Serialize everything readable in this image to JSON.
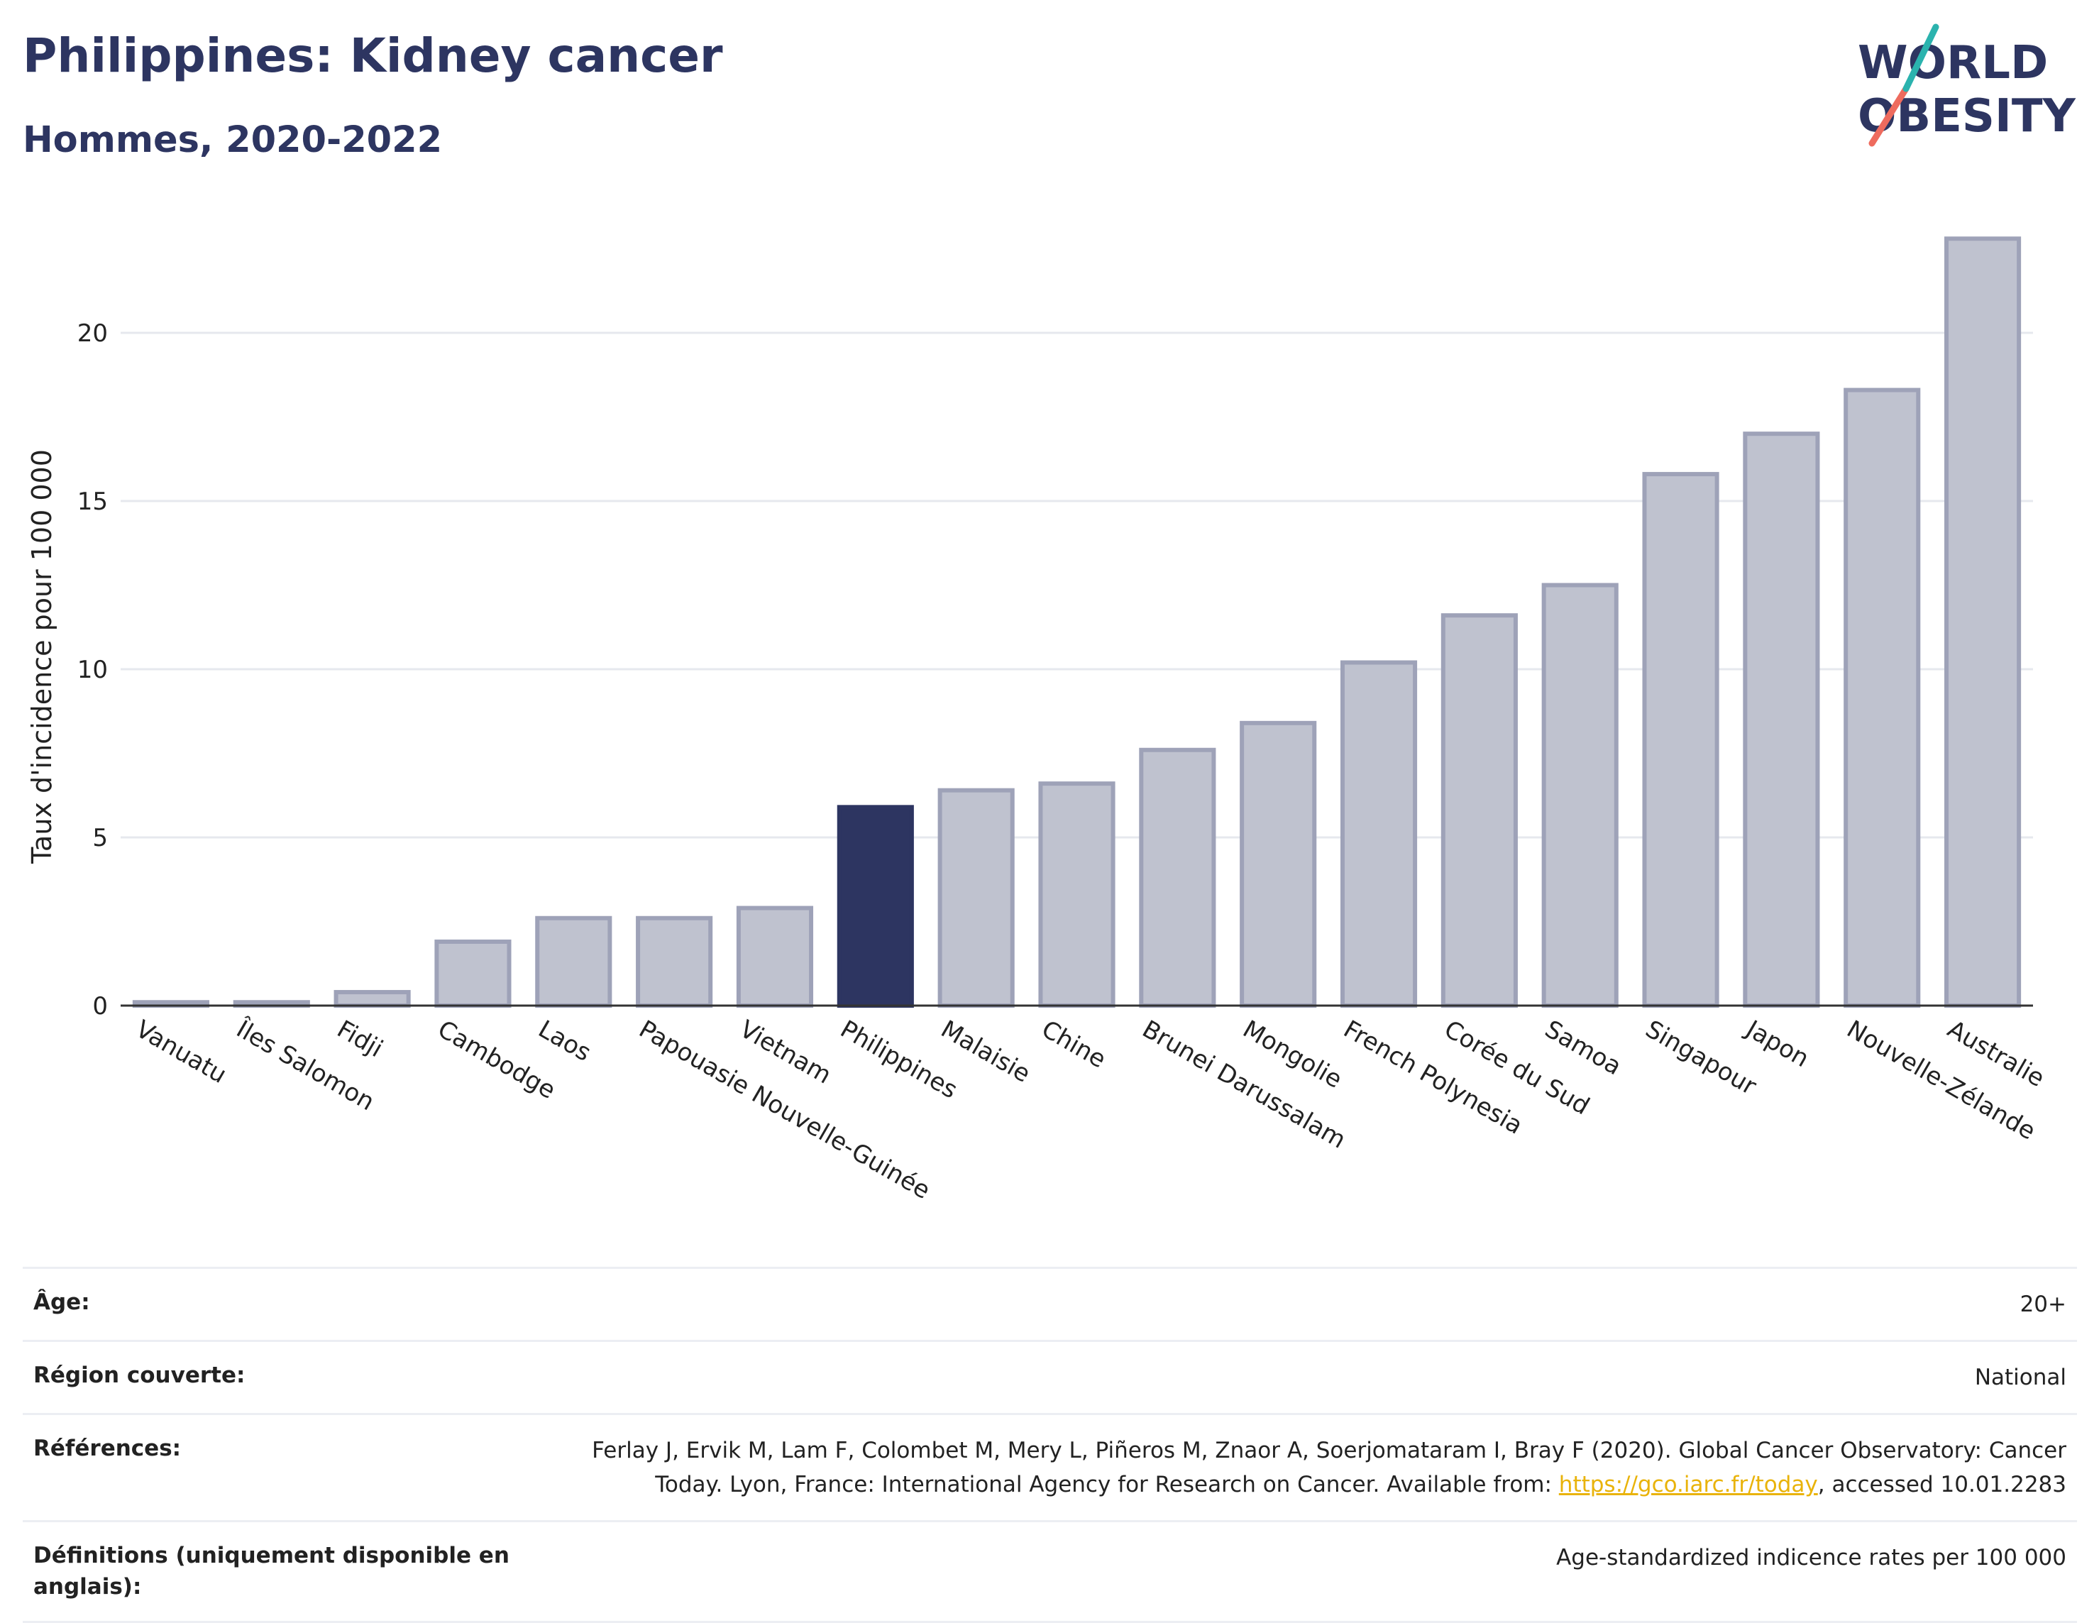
{
  "header": {
    "title": "Philippines: Kidney cancer",
    "subtitle": "Hommes, 2020-2022"
  },
  "logo": {
    "line1": "WORLD",
    "line2": "OBESITY"
  },
  "chart_data": {
    "type": "bar",
    "ylabel": "Taux d'incidence pour 100 000",
    "xlabel": "",
    "ylim": [
      0,
      24
    ],
    "yticks": [
      0,
      5,
      10,
      15,
      20
    ],
    "grid": true,
    "highlight": "Philippines",
    "categories": [
      "Vanuatu",
      "Îles Salomon",
      "Fidji",
      "Cambodge",
      "Laos",
      "Papouasie Nouvelle-Guinée",
      "Vietnam",
      "Philippines",
      "Malaisie",
      "Chine",
      "Brunei Darussalam",
      "Mongolie",
      "French Polynesia",
      "Corée du Sud",
      "Samoa",
      "Singapour",
      "Japon",
      "Nouvelle-Zélande",
      "Australie"
    ],
    "values": [
      0.1,
      0.1,
      0.4,
      1.9,
      2.6,
      2.6,
      2.9,
      5.9,
      6.4,
      6.6,
      7.6,
      8.4,
      10.2,
      11.6,
      12.5,
      15.8,
      17.0,
      18.3,
      22.8
    ]
  },
  "colors": {
    "highlight": "#2d3561",
    "bar_fill": "#bfc2cf",
    "bar_stroke": "#9ea2b8",
    "accent_teal": "#2bb3ae",
    "accent_coral": "#ee6b5e",
    "link": "#e9b30a"
  },
  "info": {
    "age_label": "Âge:",
    "age_value": "20+",
    "region_label": "Région couverte:",
    "region_value": "National",
    "references_label": "Références:",
    "references_line1": "Ferlay J, Ervik M, Lam F, Colombet M, Mery L, Piñeros M, Znaor A, Soerjomataram I, Bray F (2020). Global Cancer Observatory: Cancer",
    "references_line2_pre": "Today. Lyon, France: International Agency for Research on Cancer. Available from: ",
    "references_link": "https://gco.iarc.fr/today",
    "references_line2_post": ", accessed 10.01.2283",
    "definitions_label": "Définitions (uniquement disponible en anglais):",
    "definitions_value": "Age-standardized indicence rates per 100 000"
  }
}
